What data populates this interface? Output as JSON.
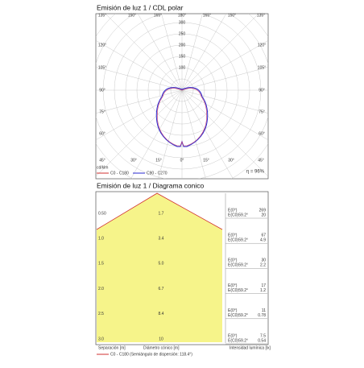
{
  "polar": {
    "title": "Emisión de luz 1 / CDL polar",
    "angle_labels": [
      "135°",
      "150°",
      "165°",
      "180°",
      "165°",
      "150°",
      "135°",
      "120°",
      "105°",
      "90°",
      "75°",
      "60°",
      "120°",
      "105°",
      "90°",
      "75°",
      "60°",
      "45°",
      "30°",
      "15°",
      "0°",
      "15°",
      "30°",
      "45°"
    ],
    "radial_labels": [
      "300",
      "250",
      "200",
      "150",
      "100"
    ],
    "unit": "cd/klm",
    "efficiency": "η = 96%",
    "legend": [
      "C0 - C180",
      "C90 - C270"
    ]
  },
  "cone": {
    "title": "Emisión de luz 1 / Diagrama conico",
    "rows": [
      {
        "separation": "0.50",
        "diameter": "1.7",
        "e0_label": "E(0°)",
        "e0": "269",
        "ec0_label": "E(C0)",
        "angle": "59.2°",
        "ec0": "20"
      },
      {
        "separation": "1.0",
        "diameter": "3.4",
        "e0_label": "E(0°)",
        "e0": "67",
        "ec0_label": "E(C0)",
        "angle": "59.2°",
        "ec0": "4.9"
      },
      {
        "separation": "1.5",
        "diameter": "5.0",
        "e0_label": "E(0°)",
        "e0": "30",
        "ec0_label": "E(C0)",
        "angle": "59.2°",
        "ec0": "2.2"
      },
      {
        "separation": "2.0",
        "diameter": "6.7",
        "e0_label": "E(0°)",
        "e0": "17",
        "ec0_label": "E(C0)",
        "angle": "59.2°",
        "ec0": "1.2"
      },
      {
        "separation": "2.5",
        "diameter": "8.4",
        "e0_label": "E(0°)",
        "e0": "11",
        "ec0_label": "E(C0)",
        "angle": "59.2°",
        "ec0": "0.78"
      },
      {
        "separation": "3.0",
        "diameter": "10",
        "e0_label": "E(0°)",
        "e0": "7.5",
        "ec0_label": "E(C0)",
        "angle": "59.2°",
        "ec0": "0.54"
      }
    ],
    "headers": [
      "Separación [m]",
      "Diámetro cónico [m]",
      "Intensidad lumínica [lx]"
    ],
    "legend": "C0 - C180 (Semiángulo de dispersión: 118.4°)"
  }
}
